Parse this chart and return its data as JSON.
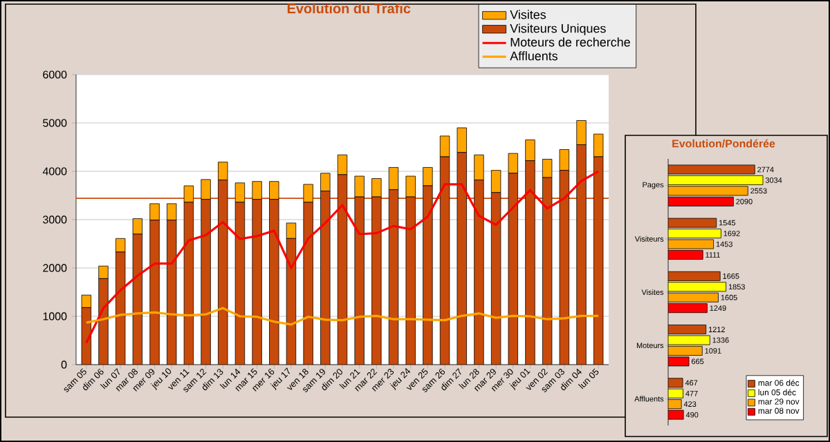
{
  "chart_data": [
    {
      "type": "bar",
      "title": "Evolution du Trafic",
      "categories": [
        "sam 05",
        "dim 06",
        "lun 07",
        "mar 08",
        "mer 09",
        "jeu 10",
        "ven 11",
        "sam 12",
        "dim 13",
        "lun 14",
        "mar 15",
        "mer 16",
        "jeu 17",
        "ven 18",
        "sam 19",
        "dim 20",
        "lun 21",
        "mar 22",
        "mer 23",
        "jeu 24",
        "ven 25",
        "sam 26",
        "dim 27",
        "lun 28",
        "mar 29",
        "mer 30",
        "jeu 01",
        "ven 02",
        "sam 03",
        "dim 04",
        "lun 05"
      ],
      "stacked": true,
      "series": [
        {
          "name": "Visiteurs Uniques",
          "color": "#c84b0c",
          "values": [
            1180,
            1780,
            2330,
            2700,
            2990,
            2990,
            3360,
            3420,
            3820,
            3360,
            3420,
            3420,
            2610,
            3360,
            3590,
            3930,
            3470,
            3470,
            3620,
            3470,
            3700,
            4300,
            4390,
            3820,
            3560,
            3960,
            4220,
            3870,
            4020,
            4550,
            4300
          ]
        },
        {
          "name": "Visites",
          "color": "#ffa500",
          "values": [
            260,
            260,
            280,
            320,
            340,
            340,
            340,
            410,
            370,
            400,
            370,
            370,
            320,
            370,
            370,
            410,
            430,
            380,
            460,
            430,
            380,
            430,
            510,
            520,
            460,
            410,
            430,
            380,
            430,
            500,
            470
          ]
        },
        {
          "name": "Moteurs de recherche",
          "type": "line",
          "color": "#ff0000",
          "values": [
            450,
            1170,
            1540,
            1840,
            2090,
            2090,
            2570,
            2680,
            2950,
            2600,
            2660,
            2770,
            2000,
            2610,
            2930,
            3300,
            2700,
            2720,
            2870,
            2800,
            3060,
            3730,
            3730,
            3080,
            2890,
            3250,
            3610,
            3230,
            3440,
            3800,
            4000
          ]
        },
        {
          "name": "Affluents",
          "type": "line",
          "color": "#ffa500",
          "values": [
            870,
            940,
            1030,
            1060,
            1080,
            1040,
            1020,
            1040,
            1170,
            1000,
            990,
            890,
            830,
            990,
            930,
            920,
            990,
            1010,
            940,
            940,
            930,
            920,
            1010,
            1060,
            970,
            1010,
            1000,
            940,
            960,
            1010,
            1010
          ]
        }
      ],
      "ylim": [
        0,
        6000
      ],
      "yticks": [
        0,
        1000,
        2000,
        3000,
        4000,
        5000,
        6000
      ],
      "grid": "y",
      "legend": "top right",
      "ref_lines": [
        {
          "axis": "y",
          "value": 3440,
          "color": "#c84b0c"
        }
      ]
    },
    {
      "type": "bar",
      "orientation": "horizontal",
      "title": "Evolution/Pondérée",
      "categories": [
        "Pages",
        "Visiteurs",
        "Visites",
        "Moteurs",
        "Affluents"
      ],
      "series": [
        {
          "name": "mar 06 déc",
          "color": "#c84b0c",
          "values": [
            2774,
            1545,
            1665,
            1212,
            467
          ]
        },
        {
          "name": "lun 05 déc",
          "color": "#ffff00",
          "values": [
            3034,
            1692,
            1853,
            1336,
            477
          ]
        },
        {
          "name": "mar 29 nov",
          "color": "#ffa500",
          "values": [
            2553,
            1453,
            1605,
            1091,
            423
          ]
        },
        {
          "name": "mar 08 nov",
          "color": "#ff0000",
          "values": [
            2090,
            1111,
            1249,
            665,
            490
          ]
        }
      ],
      "data_labels": true,
      "legend": "bottom right",
      "tick_labels": "y"
    }
  ]
}
